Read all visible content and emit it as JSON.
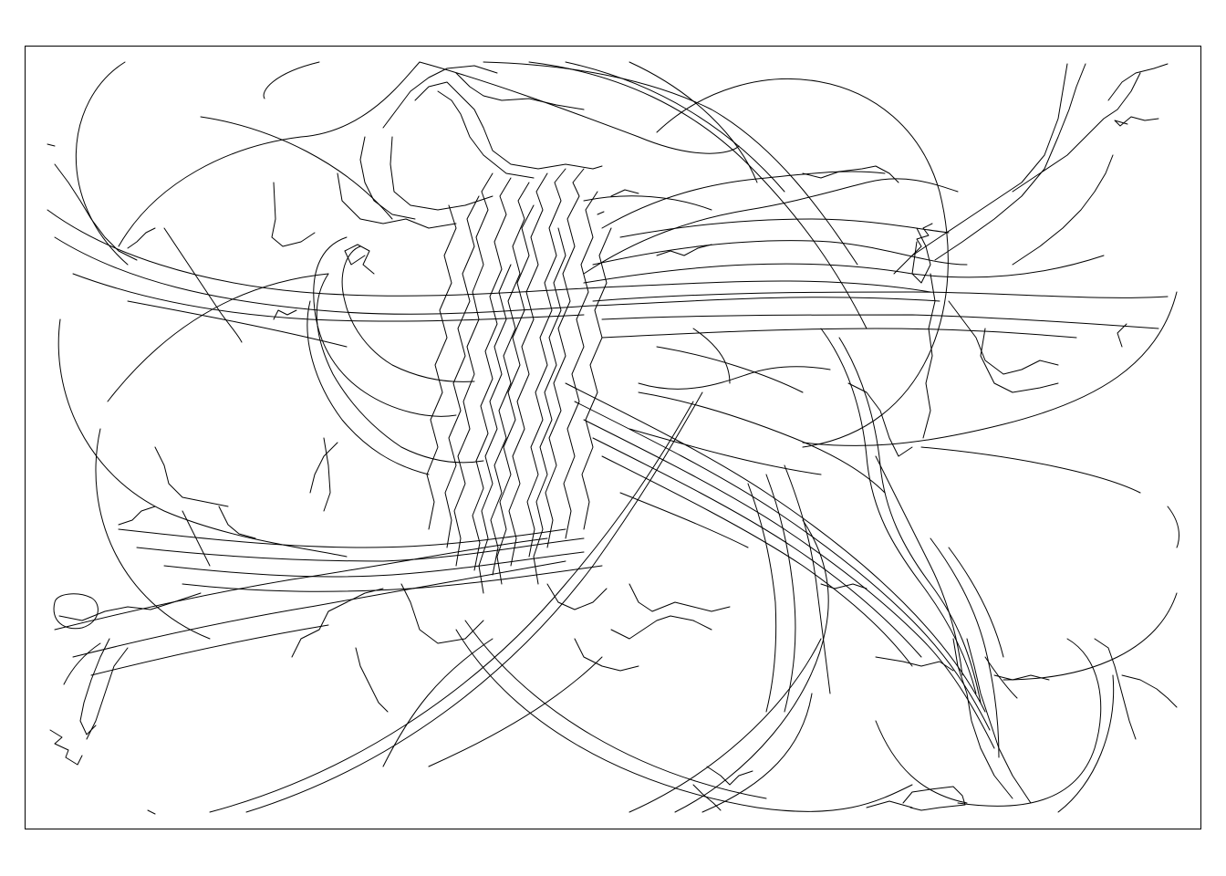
{
  "artwork": {
    "kind": "line-drawing",
    "stroke_color": "#000000",
    "background_color": "#ffffff"
  }
}
